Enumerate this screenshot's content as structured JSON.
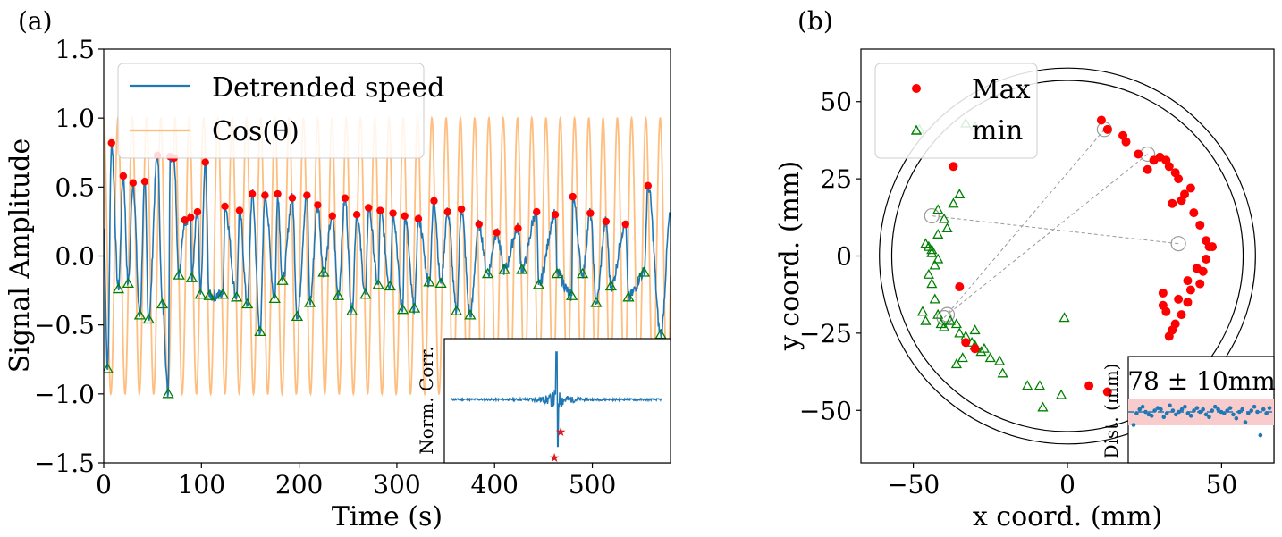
{
  "panels": [
    {
      "label": "(a)"
    },
    {
      "label": "(b)"
    }
  ],
  "chart_data": [
    {
      "type": "line",
      "title": "",
      "xlabel": "Time (s)",
      "ylabel": "Signal Amplitude",
      "xlim": [
        0,
        580
      ],
      "ylim": [
        -1.5,
        1.5
      ],
      "xticks": [
        0,
        100,
        200,
        300,
        400,
        500
      ],
      "yticks": [
        1.5,
        1.0,
        0.5,
        0.0,
        -0.5,
        -1.0,
        -1.5
      ],
      "xtick_labels": [
        "0",
        "100",
        "200",
        "300",
        "400",
        "500"
      ],
      "ytick_labels": [
        "1.5",
        "1.0",
        "0.5",
        "0.0",
        "−0.5",
        "−1.0",
        "−1.5"
      ],
      "legend": {
        "placement": "top-left",
        "entries": [
          "Detrended speed",
          "Cos(θ)"
        ]
      },
      "series": [
        {
          "name": "Detrended speed",
          "color": "#1f77b4"
        },
        {
          "name": "Cos(θ)",
          "color": "#ffbb78",
          "period_s": 14.6
        }
      ],
      "maxima": {
        "color": "#ff0000",
        "t": [
          8,
          20,
          30,
          42,
          55,
          68,
          72,
          104,
          83,
          89,
          96,
          124,
          139,
          152,
          165,
          178,
          193,
          208,
          219,
          234,
          247,
          259,
          271,
          283,
          296,
          308,
          322,
          338,
          352,
          366,
          384,
          402,
          424,
          443,
          462,
          480,
          498,
          514,
          534,
          557
        ],
        "v": [
          0.82,
          0.58,
          0.53,
          0.54,
          0.73,
          0.72,
          0.71,
          0.68,
          0.26,
          0.28,
          0.32,
          0.36,
          0.33,
          0.45,
          0.44,
          0.45,
          0.42,
          0.44,
          0.37,
          0.29,
          0.42,
          0.3,
          0.35,
          0.33,
          0.31,
          0.29,
          0.27,
          0.4,
          0.32,
          0.34,
          0.23,
          0.17,
          0.2,
          0.32,
          0.3,
          0.43,
          0.31,
          0.25,
          0.23,
          0.51
        ]
      },
      "minima": {
        "color": "#008000",
        "t": [
          4,
          15,
          25,
          37,
          46,
          60,
          66,
          77,
          90,
          99,
          108,
          122,
          136,
          147,
          160,
          175,
          183,
          198,
          211,
          225,
          240,
          254,
          268,
          281,
          293,
          306,
          318,
          333,
          345,
          361,
          375,
          393,
          410,
          428,
          445,
          464,
          479,
          490,
          504,
          519,
          537,
          553,
          570
        ],
        "v": [
          -0.82,
          -0.24,
          -0.2,
          -0.43,
          -0.46,
          -0.35,
          -1.0,
          -0.14,
          -0.16,
          -0.28,
          -0.29,
          -0.28,
          -0.3,
          -0.35,
          -0.55,
          -0.31,
          -0.18,
          -0.44,
          -0.34,
          -0.12,
          -0.29,
          -0.4,
          -0.28,
          -0.21,
          -0.22,
          -0.39,
          -0.38,
          -0.19,
          -0.2,
          -0.4,
          -0.43,
          -0.13,
          -0.1,
          -0.1,
          -0.21,
          -0.13,
          -0.29,
          -0.13,
          -0.34,
          -0.22,
          -0.3,
          -0.12,
          -0.57
        ]
      },
      "inset": {
        "ylabel": "Norm. Corr.",
        "peak_x": 0.5,
        "peak_value": 1.0,
        "min_value": -0.82,
        "markers": [
          {
            "x": 0.49,
            "y": -1.0
          },
          {
            "x": 0.52,
            "y": -0.55
          }
        ]
      }
    },
    {
      "type": "scatter",
      "title": "",
      "xlabel": "x coord. (mm)",
      "ylabel": "y coord. (mm)",
      "xlim": [
        -67,
        67
      ],
      "ylim": [
        -67,
        67
      ],
      "xticks": [
        -50,
        0,
        50
      ],
      "yticks": [
        50,
        25,
        0,
        -25,
        -50
      ],
      "xtick_labels": [
        "−50",
        "0",
        "50"
      ],
      "ytick_labels": [
        "50",
        "25",
        "0",
        "−25",
        "−50"
      ],
      "legend": {
        "placement": "top-left",
        "entries": [
          "Max",
          "min"
        ]
      },
      "circles_mm": [
        61,
        57
      ],
      "max_points": {
        "x": [
          11,
          13,
          18,
          19,
          23,
          26,
          28,
          30,
          32,
          33,
          35,
          36,
          38,
          34,
          37,
          40,
          41,
          43,
          45,
          46,
          44,
          43,
          40,
          39,
          37,
          35,
          34,
          33,
          32,
          31,
          31,
          36,
          39,
          42,
          45,
          47,
          -37,
          -33,
          -30,
          7,
          -35,
          13
        ],
        "y": [
          44,
          41,
          39,
          37,
          33,
          28,
          31,
          32,
          31,
          29,
          27,
          25,
          20,
          17,
          18,
          22,
          14,
          10,
          5,
          3,
          -5,
          -9,
          -11,
          -15,
          -19,
          -22,
          -24,
          -26,
          -18,
          -16,
          -12,
          -14,
          -8,
          -4,
          -1,
          3,
          29,
          -28,
          -30,
          -42,
          -10,
          -44
        ]
      },
      "min_points": {
        "x": [
          -48,
          -33,
          -30,
          -35,
          -37,
          -42,
          -40,
          -39,
          -42,
          -46,
          -45,
          -44,
          -44,
          -42,
          -43,
          -45,
          -44,
          -43,
          -47,
          -46,
          -42,
          -41,
          -40,
          -38,
          -36,
          -35,
          -33,
          -31,
          -30,
          -28,
          -25,
          -22,
          -21,
          -13,
          -9,
          -8,
          -2,
          -1,
          -30,
          -27,
          -34,
          -36
        ],
        "y": [
          41,
          43,
          42,
          20,
          17,
          15,
          12,
          9,
          7,
          4,
          3,
          2,
          1,
          -1,
          -3,
          -6,
          -9,
          -14,
          -18,
          -21,
          -19,
          -22,
          -23,
          -21,
          -22,
          -25,
          -26,
          -28,
          -29,
          -31,
          -33,
          -34,
          -38,
          -42,
          -42,
          -49,
          -45,
          -20,
          -24,
          -30,
          -33,
          -35
        ]
      },
      "highlighted_pairs": [
        {
          "from": [
            12,
            41
          ],
          "to": [
            -40,
            -20
          ]
        },
        {
          "from": [
            26,
            33
          ],
          "to": [
            -39,
            -19
          ]
        },
        {
          "from": [
            36,
            4
          ],
          "to": [
            -44,
            13
          ]
        }
      ],
      "inset": {
        "title": "78 ± 10mm",
        "ylabel": "Dist. (mm)",
        "mean": 78,
        "band": 10,
        "values": [
          68,
          77,
          80,
          82,
          78,
          76,
          75,
          79,
          81,
          80,
          74,
          77,
          83,
          79,
          76,
          78,
          80,
          82,
          77,
          75,
          79,
          81,
          78,
          80,
          76,
          74,
          79,
          82,
          80,
          78,
          77,
          79,
          81,
          76,
          73,
          78,
          80,
          70,
          77,
          79,
          82,
          78,
          60,
          80,
          77,
          81
        ]
      }
    }
  ]
}
